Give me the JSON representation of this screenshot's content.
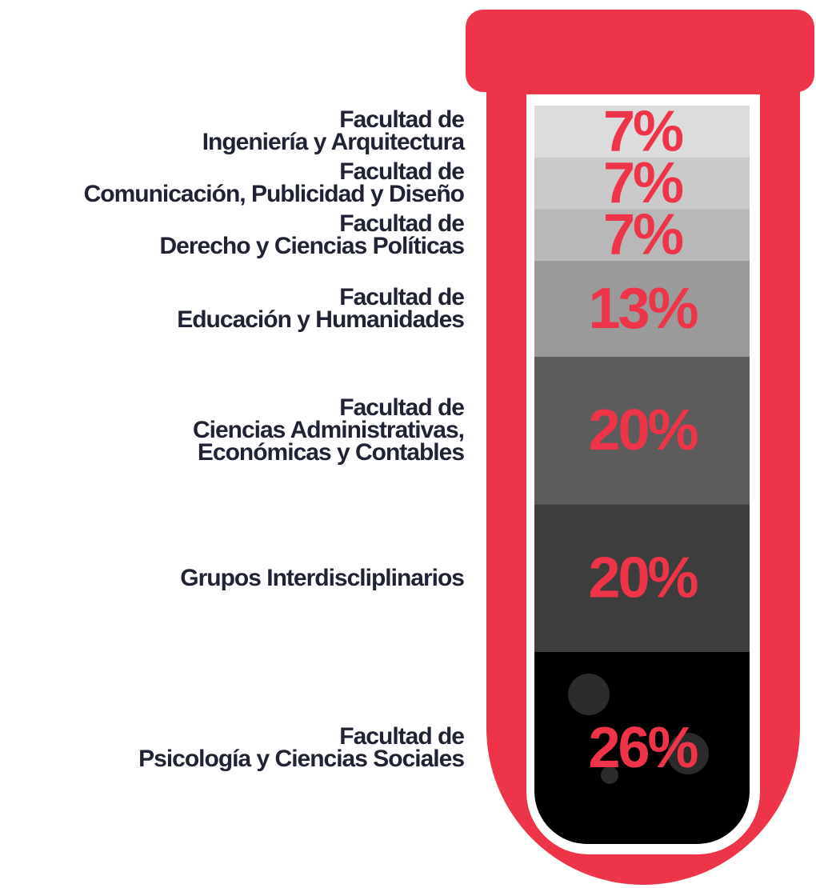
{
  "chart_data": {
    "type": "stacked-tube",
    "categories": [
      "Facultad de\nIngeniería y Arquitectura",
      "Facultad de\nComunicación, Publicidad y Diseño",
      "Facultad de\nDerecho y Ciencias Políticas",
      "Facultad de\nEducación y Humanidades",
      "Facultad de\nCiencias Administrativas,\nEconómicas y Contables",
      "Grupos Interdiscliplinarios",
      "Facultad de\nPsicología y Ciencias Sociales"
    ],
    "values": [
      7,
      7,
      7,
      13,
      20,
      20,
      26
    ],
    "value_labels": [
      "7%",
      "7%",
      "7%",
      "13%",
      "20%",
      "20%",
      "26%"
    ],
    "colors": [
      "#dcdcdc",
      "#cacaca",
      "#b8b8b8",
      "#9a9a9a",
      "#5c5c5c",
      "#3d3d3d",
      "#000000"
    ],
    "label_color": "#ee3448"
  }
}
